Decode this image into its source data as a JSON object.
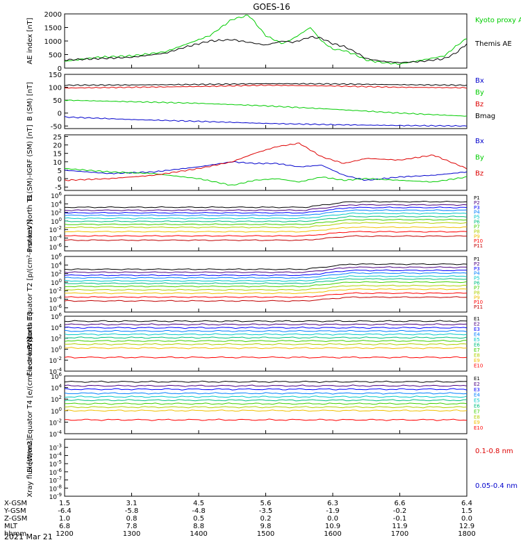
{
  "title": "GOES-16",
  "date_label": "2021 Mar 21",
  "colors": {
    "black": "#000000",
    "red": "#dd0000",
    "green": "#00cc00",
    "blue": "#0000cc",
    "proton_ramp": [
      "#000000",
      "#4b0082",
      "#0000ff",
      "#0080ff",
      "#00c8c8",
      "#00c080",
      "#40d000",
      "#b0d000",
      "#f0c000",
      "#ff0000",
      "#c00000"
    ],
    "electron_ramp": [
      "#000000",
      "#4b0082",
      "#0000ff",
      "#0080ff",
      "#00c8c8",
      "#00c080",
      "#40d000",
      "#b0d000",
      "#f0c000",
      "#ff0000",
      "#c00000"
    ]
  },
  "chart_data": [
    {
      "id": "ae",
      "type": "line",
      "ylabel": "AE index [nT]",
      "ylim": [
        0,
        2000
      ],
      "yticks": [
        0,
        500,
        1000,
        1500,
        2000
      ],
      "x_range": [
        0,
        360
      ],
      "series": [
        {
          "name": "Kyoto proxy AE",
          "color": "green",
          "x": [
            0,
            30,
            60,
            90,
            110,
            130,
            150,
            165,
            180,
            195,
            205,
            220,
            230,
            240,
            250,
            260,
            270,
            285,
            300,
            320,
            340,
            350,
            360
          ],
          "y": [
            250,
            400,
            450,
            600,
            900,
            1200,
            1800,
            1950,
            1200,
            900,
            1100,
            1500,
            1000,
            700,
            650,
            500,
            300,
            200,
            150,
            300,
            450,
            800,
            1100
          ]
        },
        {
          "name": "Themis AE",
          "color": "black",
          "x": [
            0,
            30,
            60,
            90,
            110,
            130,
            150,
            165,
            180,
            195,
            205,
            220,
            230,
            240,
            250,
            260,
            270,
            285,
            300,
            320,
            340,
            350,
            360
          ],
          "y": [
            300,
            350,
            400,
            550,
            800,
            1000,
            1050,
            950,
            850,
            1000,
            950,
            1150,
            1100,
            900,
            800,
            600,
            350,
            250,
            200,
            250,
            350,
            550,
            900
          ]
        }
      ]
    },
    {
      "id": "bsm",
      "type": "line",
      "ylabel": "B (SM) [nT]",
      "ylim": [
        -60,
        150
      ],
      "yticks": [
        -50,
        0,
        50,
        100,
        150
      ],
      "x_range": [
        0,
        360
      ],
      "series": [
        {
          "name": "Bx",
          "color": "blue",
          "x": [
            0,
            60,
            120,
            180,
            240,
            300,
            360
          ],
          "y": [
            -15,
            -25,
            -32,
            -40,
            -45,
            -48,
            -50
          ]
        },
        {
          "name": "By",
          "color": "green",
          "x": [
            0,
            60,
            120,
            180,
            240,
            300,
            360
          ],
          "y": [
            50,
            44,
            38,
            28,
            15,
            0,
            -12
          ]
        },
        {
          "name": "Bz",
          "color": "red",
          "x": [
            0,
            60,
            120,
            180,
            240,
            300,
            360
          ],
          "y": [
            97,
            100,
            103,
            108,
            105,
            100,
            98
          ]
        },
        {
          "name": "Bmag",
          "color": "black",
          "x": [
            0,
            60,
            120,
            180,
            240,
            300,
            360
          ],
          "y": [
            108,
            109,
            111,
            114,
            113,
            110,
            108
          ]
        }
      ]
    },
    {
      "id": "bdiff",
      "type": "line",
      "ylabel": "B (SM)-IGRF (SM) [nT]",
      "ylim": [
        -7,
        26
      ],
      "yticks": [
        -5,
        0,
        5,
        10,
        15,
        20,
        25
      ],
      "x_range": [
        0,
        360
      ],
      "series": [
        {
          "name": "Bx",
          "color": "blue",
          "x": [
            0,
            40,
            80,
            120,
            150,
            170,
            190,
            210,
            230,
            250,
            270,
            300,
            330,
            360
          ],
          "y": [
            5,
            3,
            4,
            7,
            10,
            9,
            9,
            7,
            8,
            2,
            -1,
            1,
            2,
            4
          ]
        },
        {
          "name": "By",
          "color": "green",
          "x": [
            0,
            40,
            80,
            120,
            150,
            170,
            190,
            210,
            230,
            250,
            270,
            300,
            330,
            360
          ],
          "y": [
            6,
            4,
            3,
            0,
            -4,
            -1,
            0,
            -2,
            1,
            -1,
            0,
            -1,
            -2,
            1
          ]
        },
        {
          "name": "Bz",
          "color": "red",
          "x": [
            0,
            40,
            80,
            120,
            150,
            170,
            190,
            210,
            230,
            250,
            270,
            300,
            330,
            360
          ],
          "y": [
            -1,
            0,
            2,
            6,
            10,
            15,
            19,
            21,
            13,
            9,
            12,
            11,
            14,
            6
          ]
        }
      ]
    },
    {
      "id": "pn",
      "type": "line",
      "ylabel": "Protons North T1",
      "log": true,
      "ylim_exp": [
        -7,
        6
      ],
      "ytick_exps": [
        -6,
        -4,
        -2,
        0,
        2,
        4,
        6
      ],
      "x_range": [
        0,
        360
      ],
      "channels": [
        "P1",
        "P2",
        "P3",
        "P4",
        "P5",
        "P6",
        "P7",
        "P8",
        "P9",
        "P10",
        "P11"
      ],
      "levels": [
        3.2,
        2.5,
        1.9,
        1.3,
        0.6,
        -0.1,
        -0.8,
        -1.5,
        -2.5,
        -3.5,
        -4.5
      ],
      "event": {
        "x": 225,
        "rise": 1.3
      }
    },
    {
      "id": "pe",
      "type": "line",
      "ylabel": "Protons Equator T2 [p/(cm²-s-sr-keV)]",
      "log": true,
      "ylim_exp": [
        -7,
        6
      ],
      "ytick_exps": [
        -6,
        -4,
        -2,
        0,
        2,
        4,
        6
      ],
      "x_range": [
        0,
        360
      ],
      "channels": [
        "P1",
        "P2",
        "P3",
        "P4",
        "P5",
        "P6",
        "P7",
        "P8",
        "P9",
        "P10",
        "P11"
      ],
      "levels": [
        3.0,
        2.3,
        1.6,
        1.0,
        0.3,
        -0.3,
        -1.0,
        -1.8,
        -2.6,
        -3.5,
        -4.4
      ],
      "event": {
        "x": 225,
        "rise": 1.2
      }
    },
    {
      "id": "en",
      "type": "line",
      "ylabel": "Electrons North T3",
      "log": true,
      "ylim_exp": [
        -4,
        6
      ],
      "ytick_exps": [
        -4,
        -2,
        0,
        2,
        4,
        6
      ],
      "x_range": [
        0,
        360
      ],
      "channels": [
        "E1",
        "E2",
        "E3",
        "E4",
        "E5",
        "E6",
        "E7",
        "E8",
        "E9",
        "E10"
      ],
      "levels": [
        5.1,
        4.5,
        3.9,
        3.3,
        2.7,
        2.1,
        1.5,
        0.9,
        0.2,
        -1.5
      ]
    },
    {
      "id": "ee",
      "type": "line",
      "ylabel": "Electrons Equator T4 [e/(cm²-s-sr-keV)]",
      "log": true,
      "ylim_exp": [
        -4,
        6
      ],
      "ytick_exps": [
        -4,
        -2,
        0,
        2,
        4,
        6
      ],
      "x_range": [
        0,
        360
      ],
      "channels": [
        "E1",
        "E2",
        "E3",
        "E4",
        "E5",
        "E6",
        "E7",
        "E8",
        "E9",
        "E10"
      ],
      "levels": [
        5.0,
        4.3,
        3.7,
        3.0,
        2.4,
        1.8,
        1.2,
        0.6,
        0.0,
        -1.6
      ]
    },
    {
      "id": "xray",
      "type": "line",
      "ylabel": "Xray flux [W/m2]",
      "log": true,
      "ylim_exp": [
        -9,
        -2
      ],
      "ytick_exps": [
        -9,
        -8,
        -7,
        -6,
        -5,
        -4,
        -3
      ],
      "x_range": [
        0,
        360
      ],
      "series": [
        {
          "name": "0.1-0.8 nm",
          "color": "red"
        },
        {
          "name": "0.05-0.4 nm",
          "color": "blue"
        }
      ]
    }
  ],
  "time_axis": {
    "rows": [
      {
        "label": "X-GSM",
        "values": [
          "1.5",
          "3.1",
          "4.5",
          "5.6",
          "6.3",
          "6.6",
          "6.4"
        ]
      },
      {
        "label": "Y-GSM",
        "values": [
          "-6.4",
          "-5.8",
          "-4.8",
          "-3.5",
          "-1.9",
          "-0.2",
          "1.5"
        ]
      },
      {
        "label": "Z-GSM",
        "values": [
          "1.0",
          "0.8",
          "0.5",
          "0.2",
          "0.0",
          "-0.1",
          "0.0"
        ]
      },
      {
        "label": "MLT",
        "values": [
          "6.8",
          "7.8",
          "8.8",
          "9.8",
          "10.9",
          "11.9",
          "12.9"
        ]
      },
      {
        "label": "hhmm",
        "values": [
          "1200",
          "1300",
          "1400",
          "1500",
          "1600",
          "1700",
          "1800"
        ]
      }
    ]
  }
}
